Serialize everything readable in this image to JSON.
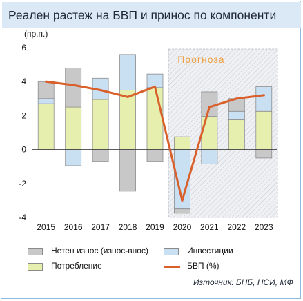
{
  "header": {
    "title": "Реален растеж на БВП и принос по компоненти"
  },
  "source": "Източник: БНБ, НСИ, МФ",
  "chart_data": {
    "type": "bar",
    "stacked": true,
    "unit_label": "(пр.п.)",
    "forecast_label": "Прогноза",
    "forecast_from": "2020",
    "categories": [
      "2015",
      "2016",
      "2017",
      "2018",
      "2019",
      "2020",
      "2021",
      "2022",
      "2023"
    ],
    "yticks": [
      "6",
      "4",
      "2",
      "0",
      "-2",
      "-4"
    ],
    "ylim": [
      -4,
      6
    ],
    "series": [
      {
        "name": "Потребление",
        "type": "bar",
        "color": "#e6efae",
        "values": [
          2.7,
          2.5,
          2.95,
          3.5,
          3.65,
          0.75,
          1.95,
          1.75,
          2.25
        ]
      },
      {
        "name": "Инвестиции",
        "type": "bar",
        "color": "#c9dff2",
        "values": [
          0.3,
          -0.95,
          1.25,
          2.1,
          0.8,
          -3.5,
          -0.85,
          0.5,
          1.45
        ]
      },
      {
        "name": "Нетен износ (износ-внос)",
        "type": "bar",
        "color": "#c8c8c8",
        "values": [
          1.0,
          2.3,
          -0.7,
          -2.45,
          -0.7,
          -0.25,
          1.45,
          0.75,
          -0.5
        ]
      },
      {
        "name": "БВП (%)",
        "type": "line",
        "color": "#d95f2b",
        "values": [
          4.0,
          3.8,
          3.5,
          3.1,
          3.7,
          -3.0,
          2.5,
          3.0,
          3.2
        ]
      }
    ],
    "legend_order": [
      "Нетен износ (износ-внос)",
      "Инвестиции",
      "Потребление",
      "БВП (%)"
    ],
    "legend_position": "bottom",
    "grid": false
  }
}
